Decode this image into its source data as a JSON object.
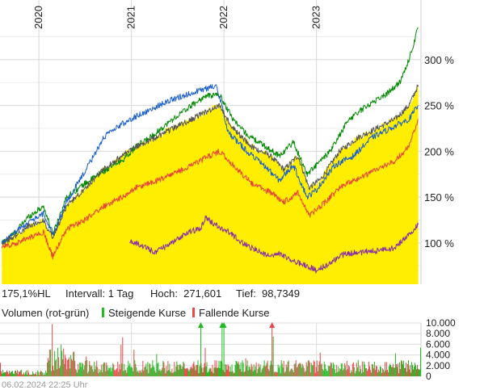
{
  "chart_data": {
    "type": "line",
    "x_ticks": [
      "2020",
      "2021",
      "2022",
      "2023"
    ],
    "y_ticks": [
      "300 %",
      "250 %",
      "200 %",
      "150 %",
      "100 %"
    ],
    "ylim": [
      55,
      365
    ],
    "grid": true,
    "series": [
      {
        "color": "#008a00",
        "points": [
          [
            2019.6,
            100
          ],
          [
            2019.75,
            112
          ],
          [
            2019.88,
            128
          ],
          [
            2020.05,
            140
          ],
          [
            2020.15,
            110
          ],
          [
            2020.3,
            150
          ],
          [
            2020.5,
            165
          ],
          [
            2020.7,
            178
          ],
          [
            2020.9,
            190
          ],
          [
            2021.05,
            205
          ],
          [
            2021.2,
            215
          ],
          [
            2021.45,
            235
          ],
          [
            2021.65,
            250
          ],
          [
            2021.8,
            260
          ],
          [
            2021.95,
            262
          ],
          [
            2022.1,
            235
          ],
          [
            2022.25,
            218
          ],
          [
            2022.45,
            205
          ],
          [
            2022.6,
            195
          ],
          [
            2022.75,
            210
          ],
          [
            2022.9,
            175
          ],
          [
            2023.0,
            185
          ],
          [
            2023.15,
            200
          ],
          [
            2023.35,
            235
          ],
          [
            2023.55,
            250
          ],
          [
            2023.75,
            262
          ],
          [
            2023.9,
            275
          ],
          [
            2024.0,
            300
          ],
          [
            2024.1,
            335
          ]
        ]
      },
      {
        "color": "#1a5fd0",
        "points": [
          [
            2019.6,
            100
          ],
          [
            2019.75,
            112
          ],
          [
            2019.88,
            122
          ],
          [
            2020.05,
            132
          ],
          [
            2020.15,
            108
          ],
          [
            2020.3,
            145
          ],
          [
            2020.5,
            178
          ],
          [
            2020.7,
            215
          ],
          [
            2020.9,
            230
          ],
          [
            2021.05,
            238
          ],
          [
            2021.2,
            245
          ],
          [
            2021.4,
            255
          ],
          [
            2021.6,
            262
          ],
          [
            2021.8,
            268
          ],
          [
            2021.92,
            272
          ],
          [
            2022.05,
            220
          ],
          [
            2022.25,
            200
          ],
          [
            2022.45,
            183
          ],
          [
            2022.6,
            168
          ],
          [
            2022.75,
            185
          ],
          [
            2022.9,
            150
          ],
          [
            2023.0,
            158
          ],
          [
            2023.2,
            185
          ],
          [
            2023.4,
            195
          ],
          [
            2023.6,
            215
          ],
          [
            2023.8,
            225
          ],
          [
            2024.0,
            235
          ],
          [
            2024.1,
            250
          ]
        ]
      },
      {
        "color": "#555555",
        "points": [
          [
            2019.6,
            100
          ],
          [
            2019.75,
            108
          ],
          [
            2019.88,
            118
          ],
          [
            2020.05,
            125
          ],
          [
            2020.15,
            105
          ],
          [
            2020.3,
            140
          ],
          [
            2020.5,
            160
          ],
          [
            2020.7,
            180
          ],
          [
            2020.9,
            195
          ],
          [
            2021.05,
            205
          ],
          [
            2021.2,
            212
          ],
          [
            2021.45,
            225
          ],
          [
            2021.65,
            235
          ],
          [
            2021.85,
            245
          ],
          [
            2021.95,
            250
          ],
          [
            2022.1,
            225
          ],
          [
            2022.3,
            205
          ],
          [
            2022.5,
            195
          ],
          [
            2022.65,
            180
          ],
          [
            2022.8,
            195
          ],
          [
            2022.92,
            160
          ],
          [
            2023.05,
            170
          ],
          [
            2023.25,
            200
          ],
          [
            2023.45,
            215
          ],
          [
            2023.65,
            225
          ],
          [
            2023.85,
            235
          ],
          [
            2024.0,
            250
          ],
          [
            2024.1,
            272
          ]
        ]
      },
      {
        "color": "#e8453c",
        "points": [
          [
            2019.6,
            95
          ],
          [
            2019.75,
            100
          ],
          [
            2019.88,
            105
          ],
          [
            2020.05,
            112
          ],
          [
            2020.15,
            85
          ],
          [
            2020.3,
            115
          ],
          [
            2020.5,
            125
          ],
          [
            2020.7,
            140
          ],
          [
            2020.9,
            150
          ],
          [
            2021.05,
            160
          ],
          [
            2021.2,
            165
          ],
          [
            2021.45,
            175
          ],
          [
            2021.65,
            185
          ],
          [
            2021.85,
            195
          ],
          [
            2021.95,
            200
          ],
          [
            2022.1,
            185
          ],
          [
            2022.3,
            165
          ],
          [
            2022.5,
            155
          ],
          [
            2022.65,
            145
          ],
          [
            2022.8,
            155
          ],
          [
            2022.92,
            130
          ],
          [
            2023.05,
            140
          ],
          [
            2023.25,
            160
          ],
          [
            2023.45,
            170
          ],
          [
            2023.65,
            180
          ],
          [
            2023.85,
            190
          ],
          [
            2024.0,
            205
          ],
          [
            2024.1,
            235
          ]
        ]
      },
      {
        "color": "#8a2ea8",
        "points": [
          [
            2020.98,
            102
          ],
          [
            2021.1,
            98
          ],
          [
            2021.25,
            90
          ],
          [
            2021.45,
            100
          ],
          [
            2021.6,
            112
          ],
          [
            2021.75,
            115
          ],
          [
            2021.8,
            128
          ],
          [
            2021.9,
            120
          ],
          [
            2022.05,
            112
          ],
          [
            2022.2,
            100
          ],
          [
            2022.35,
            92
          ],
          [
            2022.5,
            85
          ],
          [
            2022.6,
            88
          ],
          [
            2022.75,
            80
          ],
          [
            2022.9,
            75
          ],
          [
            2023.0,
            70
          ],
          [
            2023.15,
            78
          ],
          [
            2023.3,
            88
          ],
          [
            2023.5,
            90
          ],
          [
            2023.7,
            92
          ],
          [
            2023.85,
            95
          ],
          [
            2024.0,
            110
          ],
          [
            2024.1,
            120
          ]
        ]
      }
    ],
    "area": {
      "color": "#ffee00",
      "points": [
        [
          2019.6,
          100
        ],
        [
          2019.75,
          108
        ],
        [
          2019.88,
          118
        ],
        [
          2020.05,
          125
        ],
        [
          2020.15,
          105
        ],
        [
          2020.3,
          140
        ],
        [
          2020.5,
          160
        ],
        [
          2020.7,
          180
        ],
        [
          2020.9,
          195
        ],
        [
          2021.05,
          205
        ],
        [
          2021.2,
          212
        ],
        [
          2021.45,
          225
        ],
        [
          2021.65,
          235
        ],
        [
          2021.85,
          245
        ],
        [
          2021.95,
          250
        ],
        [
          2022.1,
          225
        ],
        [
          2022.3,
          205
        ],
        [
          2022.5,
          195
        ],
        [
          2022.65,
          180
        ],
        [
          2022.8,
          195
        ],
        [
          2022.92,
          160
        ],
        [
          2023.05,
          170
        ],
        [
          2023.25,
          200
        ],
        [
          2023.45,
          215
        ],
        [
          2023.65,
          225
        ],
        [
          2023.85,
          235
        ],
        [
          2024.0,
          250
        ],
        [
          2024.1,
          272
        ]
      ]
    },
    "volume": {
      "y_ticks": [
        "10.000",
        "8.000",
        "6.000",
        "4.000",
        "2.000",
        "0"
      ],
      "ylim": [
        0,
        10000
      ],
      "colors": {
        "up": "#22bb22",
        "down": "#e84848"
      }
    }
  },
  "info": {
    "performance": "175,1%HL",
    "interval": "Intervall: 1 Tag",
    "high": "Hoch:  271,601",
    "low": "Tief:  98,7349"
  },
  "legend": {
    "volume_label": "Volumen (rot-grün)",
    "up_label": "Steigende Kurse",
    "down_label": "Fallende Kurse"
  },
  "timestamp": "06.02.2024 22:25 Uhr"
}
